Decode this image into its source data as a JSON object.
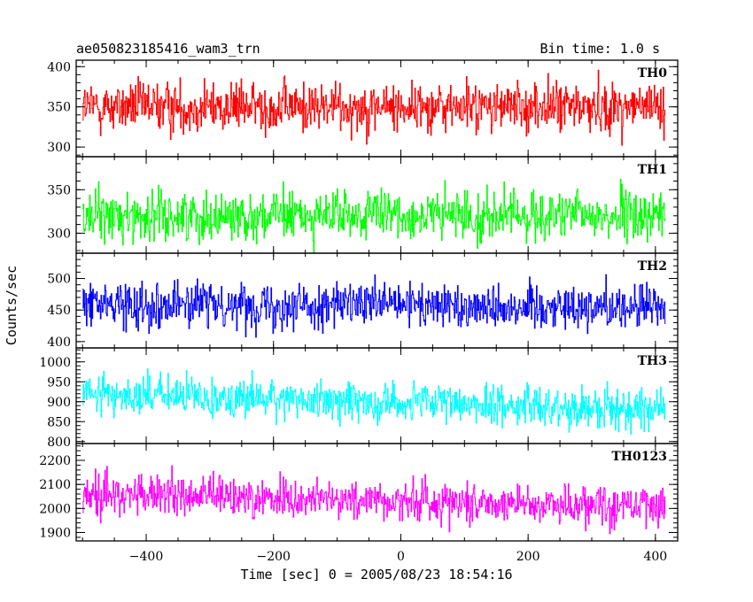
{
  "header": {
    "title": "ae050823185416_wam3_trn",
    "bin_time": "Bin time: 1.0 s"
  },
  "chart_data": {
    "type": "line",
    "xlabel": "Time [sec] 0 = 2005/08/23 18:54:16",
    "ylabel": "Counts/sec",
    "xlim": [
      -510,
      435
    ],
    "x_data_range": [
      -500,
      415
    ],
    "x_ticks": [
      -400,
      -200,
      0,
      200,
      400
    ],
    "x_tick_labels": [
      "−400",
      "−200",
      "0",
      "200",
      "400"
    ],
    "x_step": 1.0,
    "panels": [
      {
        "name": "TH0",
        "color": "#ff0000",
        "ylim": [
          288,
          408
        ],
        "yticks": [
          300,
          350,
          400
        ],
        "ytick_labels": [
          "300",
          "350",
          "400"
        ],
        "mean_start": 350,
        "mean_end": 350,
        "spread": 22
      },
      {
        "name": "TH1",
        "color": "#00ff00",
        "ylim": [
          277,
          388
        ],
        "yticks": [
          300,
          350
        ],
        "ytick_labels": [
          "300",
          "350"
        ],
        "mean_start": 320,
        "mean_end": 320,
        "spread": 20
      },
      {
        "name": "TH2",
        "color": "#0000ff",
        "ylim": [
          390,
          540
        ],
        "yticks": [
          400,
          450,
          500
        ],
        "ytick_labels": [
          "400",
          "450",
          "500"
        ],
        "mean_start": 460,
        "mean_end": 455,
        "spread": 25
      },
      {
        "name": "TH3",
        "color": "#00ffff",
        "ylim": [
          795,
          1035
        ],
        "yticks": [
          800,
          850,
          900,
          950,
          1000
        ],
        "ytick_labels": [
          "800",
          "850",
          "900",
          "950",
          "1000"
        ],
        "mean_start": 920,
        "mean_end": 880,
        "spread": 35
      },
      {
        "name": "TH0123",
        "color": "#ff00ff",
        "ylim": [
          1865,
          2270
        ],
        "yticks": [
          1900,
          2000,
          2100,
          2200
        ],
        "ytick_labels": [
          "1900",
          "2000",
          "2100",
          "2200"
        ],
        "mean_start": 2060,
        "mean_end": 2010,
        "spread": 60
      }
    ]
  }
}
